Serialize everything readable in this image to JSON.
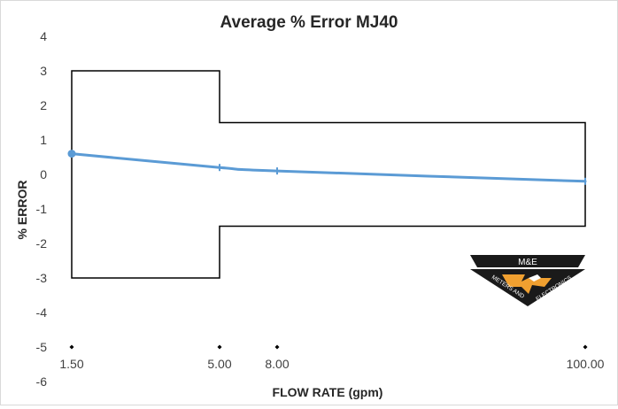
{
  "chart_data": {
    "type": "line",
    "title": "Average % Error MJ40",
    "xlabel": "FLOW RATE (gpm)",
    "ylabel": "% ERROR",
    "ylim": [
      -6,
      4
    ],
    "yticks": [
      "4",
      "3",
      "2",
      "1",
      "0",
      "-1",
      "-2",
      "-3",
      "-4",
      "-5",
      "-6"
    ],
    "grid": false,
    "x_categories": [
      "1.50",
      "5.00",
      "8.00",
      "100.00"
    ],
    "marker_y": -5,
    "series": [
      {
        "x": [
          "1.50",
          "5.00",
          "8.00",
          "100.00"
        ],
        "values": [
          0.6,
          0.2,
          0.1,
          -0.2
        ]
      }
    ],
    "tolerance_band": {
      "x": [
        "1.50",
        "5.00",
        "5.00",
        "100.00"
      ],
      "upper": [
        3,
        3,
        1.5,
        1.5
      ],
      "lower": [
        -3,
        -3,
        -1.5,
        -1.5
      ]
    },
    "colors": {
      "series": "#5b9bd5",
      "band": "#000000",
      "logo_orange": "#f0a030",
      "logo_dark": "#1a1a1a"
    }
  },
  "logo": {
    "top_text": "M&E",
    "left_text": "METERS AND",
    "right_text": "ELECTRONICS"
  }
}
